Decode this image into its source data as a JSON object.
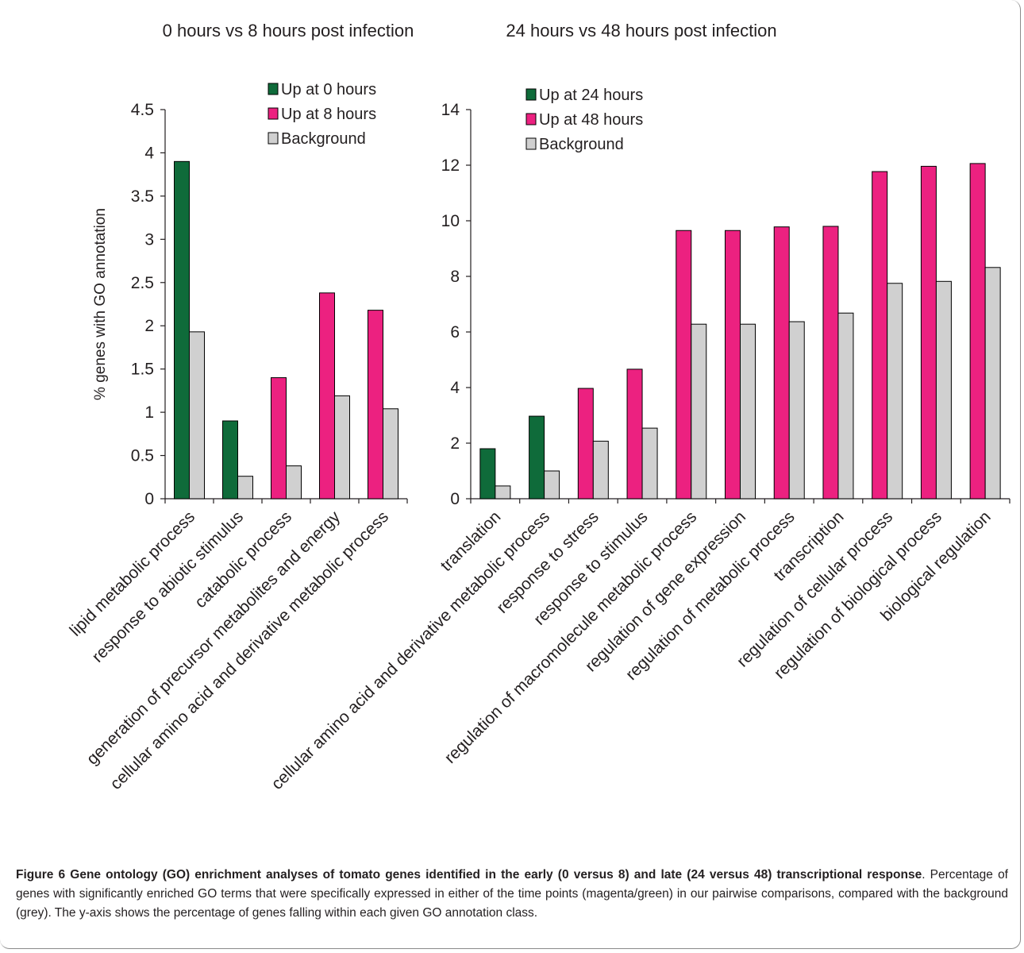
{
  "colors": {
    "up_first": "#0f6b3a",
    "up_second": "#ec2180",
    "background": "#d0d0d0",
    "axis": "#231f20",
    "border": "#8a8a8a"
  },
  "chart_data": [
    {
      "type": "bar",
      "title": "0 hours vs 8 hours post infection",
      "ylabel": "% genes with GO annotation",
      "ylim": [
        0,
        4.5
      ],
      "yticks": [
        0,
        0.5,
        1,
        1.5,
        2,
        2.5,
        3,
        3.5,
        4,
        4.5
      ],
      "ytick_labels": [
        "0",
        "0.5",
        "1",
        "1.5",
        "2",
        "2.5",
        "3",
        "3.5",
        "4",
        "4.5"
      ],
      "legend_position": "top-right",
      "categories": [
        "lipid metabolic process",
        "response to abiotic stimulus",
        "catabolic process",
        "generation of precursor metabolites and energy",
        "cellular amino acid and derivative metabolic process"
      ],
      "series": [
        {
          "name": "Up at 0 hours",
          "color": "#0f6b3a",
          "values": [
            3.9,
            0.9,
            null,
            null,
            null
          ]
        },
        {
          "name": "Up at 8 hours",
          "color": "#ec2180",
          "values": [
            null,
            null,
            1.4,
            2.38,
            2.18
          ]
        },
        {
          "name": "Background",
          "color": "#d0d0d0",
          "values": [
            1.93,
            0.26,
            0.38,
            1.19,
            1.04
          ]
        }
      ]
    },
    {
      "type": "bar",
      "title": "24 hours vs 48 hours post infection",
      "ylabel": "",
      "ylim": [
        0,
        14
      ],
      "yticks": [
        0,
        2,
        4,
        6,
        8,
        10,
        12,
        14
      ],
      "ytick_labels": [
        "0",
        "2",
        "4",
        "6",
        "8",
        "10",
        "12",
        "14"
      ],
      "legend_position": "top-left",
      "categories": [
        "translation",
        "cellular amino acid and derivative metabolic process",
        "response to stress",
        "response to stimulus",
        "regulation of macromolecule metabolic process",
        "regulation of gene expression",
        "regulation of metabolic process",
        "transcription",
        "regulation of cellular process",
        "regulation of biological process",
        "biological regulation"
      ],
      "series": [
        {
          "name": "Up at 24 hours",
          "color": "#0f6b3a",
          "values": [
            1.8,
            2.97,
            null,
            null,
            null,
            null,
            null,
            null,
            null,
            null,
            null
          ]
        },
        {
          "name": "Up at 48 hours",
          "color": "#ec2180",
          "values": [
            null,
            null,
            3.97,
            4.66,
            9.65,
            9.65,
            9.78,
            9.8,
            11.77,
            11.96,
            12.06
          ]
        },
        {
          "name": "Background",
          "color": "#d0d0d0",
          "values": [
            0.46,
            1.0,
            2.07,
            2.54,
            6.28,
            6.28,
            6.37,
            6.68,
            7.75,
            7.82,
            8.32
          ]
        }
      ]
    }
  ],
  "caption": {
    "figure_label": "Figure 6",
    "title": "Gene ontology (GO) enrichment analyses of tomato genes identified in the early (0 versus 8) and late (24 versus 48) transcriptional response",
    "body": ". Percentage of genes with significantly enriched GO terms that were specifically expressed in either of the time points (magenta/green) in our pairwise comparisons, compared with the background (grey). The y-axis shows the percentage of genes falling within each given GO annotation class."
  }
}
